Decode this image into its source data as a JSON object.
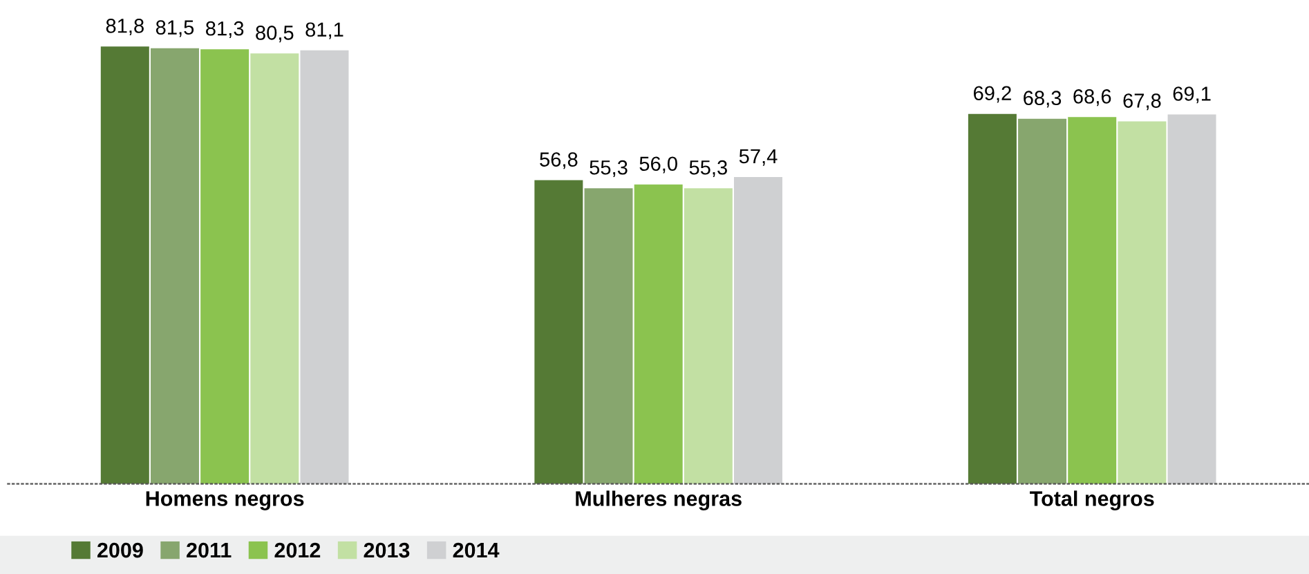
{
  "chart_data": {
    "type": "bar",
    "categories": [
      "Homens negros",
      "Mulheres negras",
      "Total negros"
    ],
    "series": [
      {
        "name": "2009",
        "color": "#557a35",
        "values": [
          81.8,
          56.8,
          69.2
        ],
        "value_labels": [
          "81,8",
          "56,8",
          "69,2"
        ]
      },
      {
        "name": "2011",
        "color": "#87a66e",
        "values": [
          81.5,
          55.3,
          68.3
        ],
        "value_labels": [
          "81,5",
          "55,3",
          "68,3"
        ]
      },
      {
        "name": "2012",
        "color": "#8bc34f",
        "values": [
          81.3,
          56.0,
          68.6
        ],
        "value_labels": [
          "81,3",
          "56,0",
          "68,6"
        ]
      },
      {
        "name": "2013",
        "color": "#c2e0a3",
        "values": [
          80.5,
          55.3,
          67.8
        ],
        "value_labels": [
          "80,5",
          "55,3",
          "67,8"
        ]
      },
      {
        "name": "2014",
        "color": "#cfd0d2",
        "values": [
          81.1,
          57.4,
          69.1
        ],
        "value_labels": [
          "81,1",
          "57,4",
          "69,1"
        ]
      }
    ],
    "legend": "bottom left",
    "grid": false,
    "tick_labels": "x"
  }
}
